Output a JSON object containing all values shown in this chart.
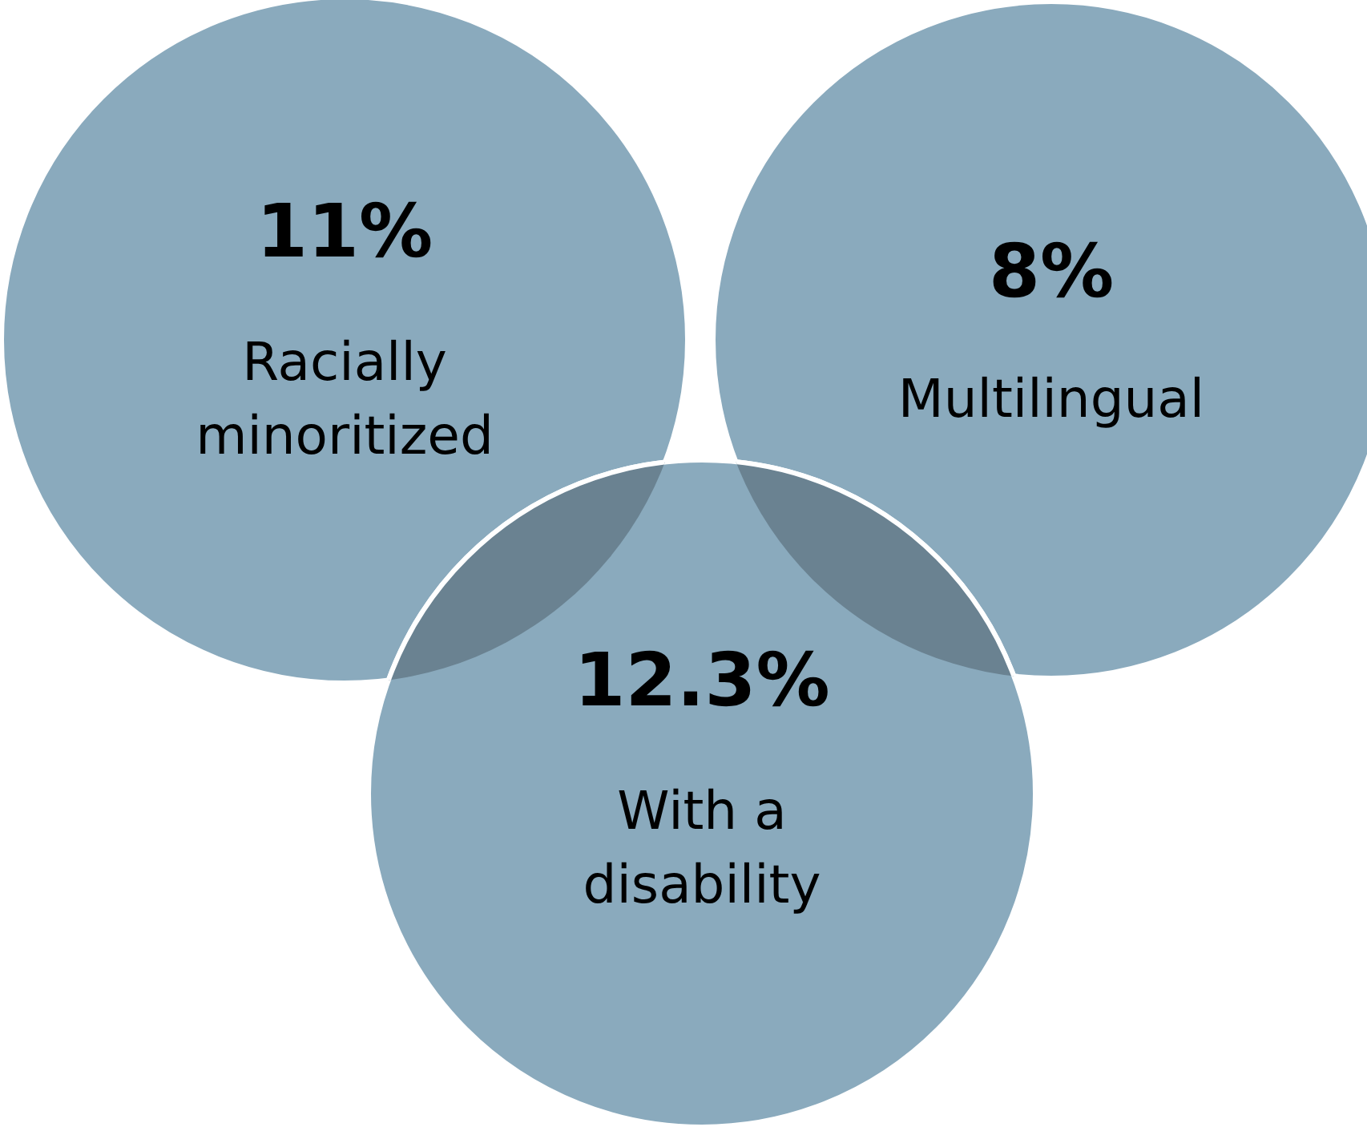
{
  "chart_data": {
    "type": "other",
    "categories": [
      "Racially minoritized",
      "Multilingual",
      "With a disability"
    ],
    "values": [
      11,
      8,
      12.3
    ],
    "value_labels": [
      "11%",
      "8%",
      "12.3%"
    ],
    "colors": [
      "#8aaabd",
      "#8aaabd",
      "#8aaabd"
    ]
  }
}
